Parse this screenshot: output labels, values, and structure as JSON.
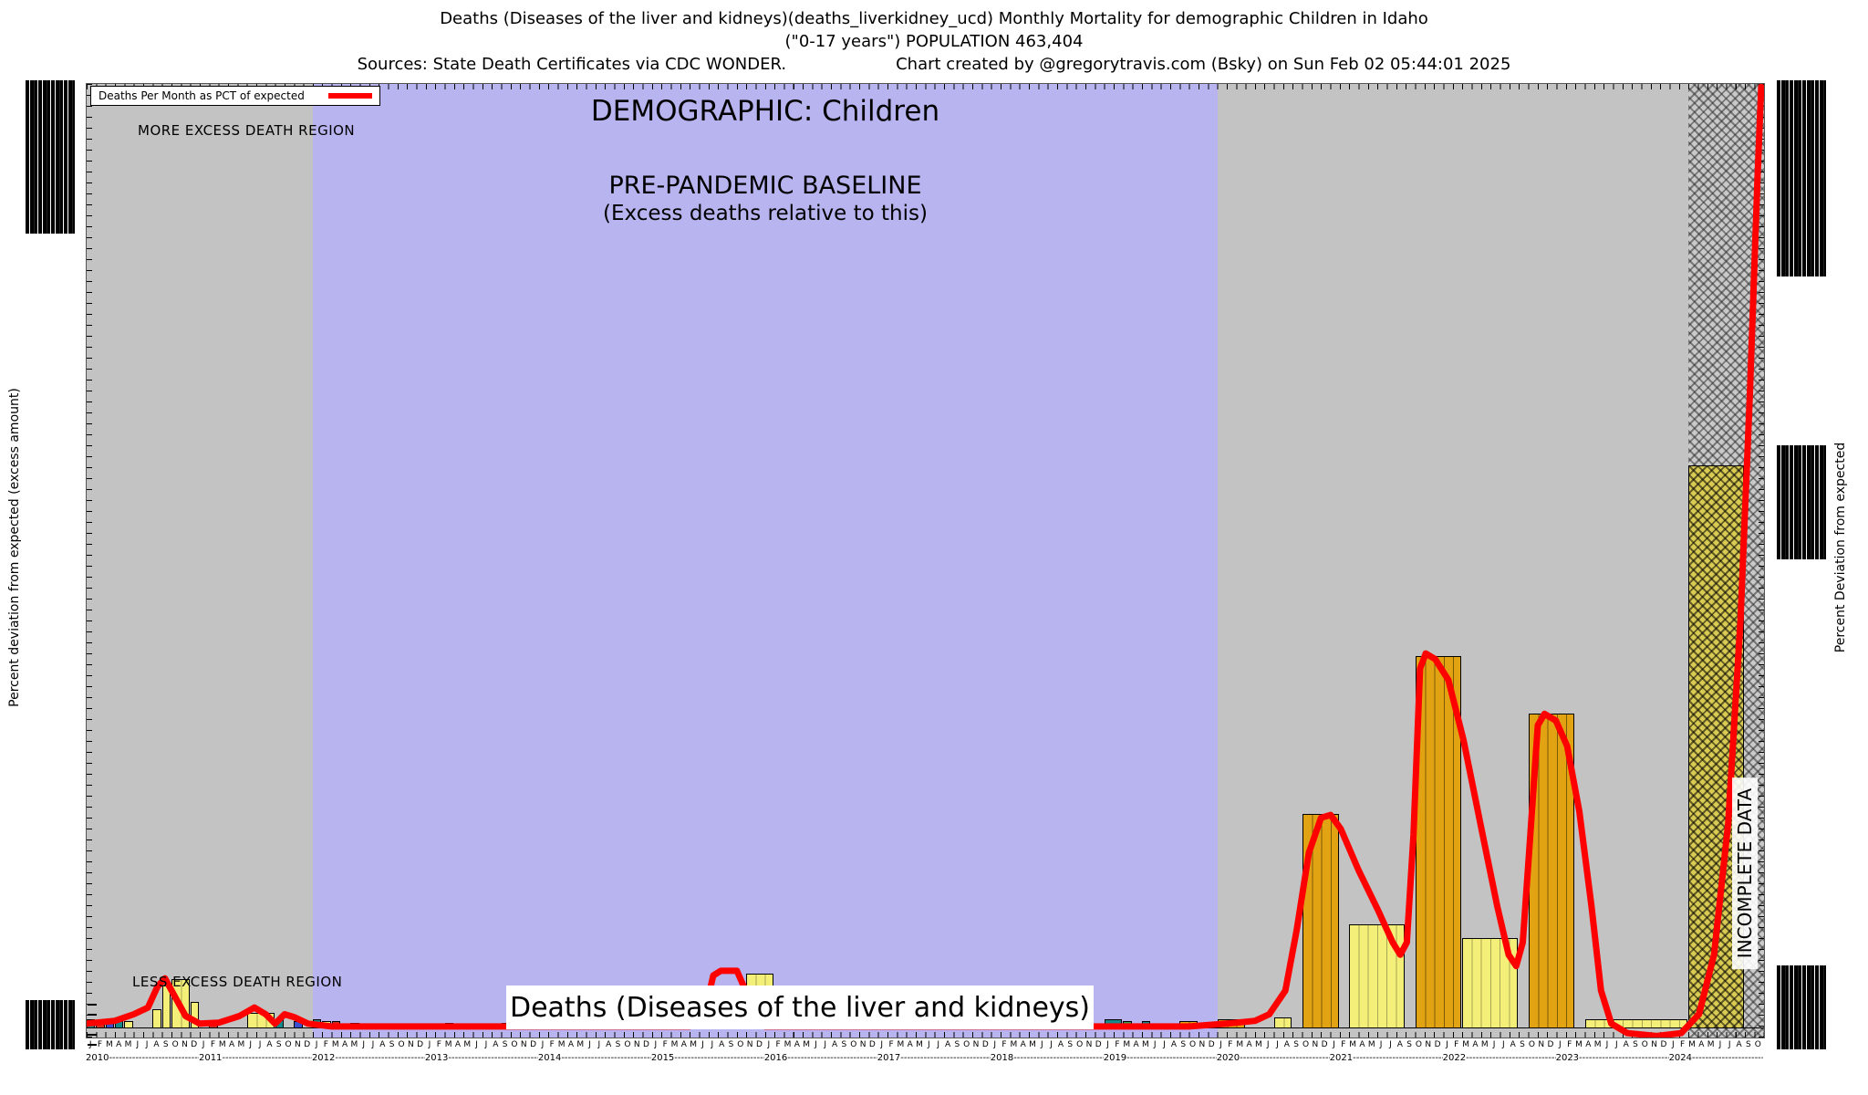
{
  "header": {
    "line1": "Deaths (Diseases of the liver and kidneys)(deaths_liverkidney_ucd) Monthly Mortality for demographic Children in Idaho",
    "line2": "(\"0-17 years\") POPULATION 463,404",
    "sources": "Sources: State Death Certificates via CDC WONDER.",
    "credit": "Chart created by @gregorytravis.com (Bsky) on Sun Feb 02 05:44:01 2025"
  },
  "labels": {
    "legend": "Deaths Per Month as PCT of expected",
    "more_excess": "MORE EXCESS DEATH REGION",
    "less_excess": "LESS EXCESS DEATH REGION",
    "demographic": "DEMOGRAPHIC: Children",
    "baseline_line1": "PRE-PANDEMIC BASELINE",
    "baseline_line2": "(Excess deaths relative to this)",
    "incomplete": "INCOMPLETE DATA",
    "bottom_title": "Deaths (Diseases of the liver and kidneys)",
    "y_left": "Percent deviation from expected (excess amount)",
    "y_right": "Percent Deviation from expected"
  },
  "axis": {
    "years": [
      "2010",
      "2011",
      "2012",
      "2013",
      "2014",
      "2015",
      "2016",
      "2017",
      "2018",
      "2019",
      "2020",
      "2021",
      "2022",
      "2023",
      "2024"
    ],
    "months_pattern": "JFMAMJJASOND",
    "months_total": 178
  },
  "colors": {
    "line": "#ff0000",
    "bar_orange": "#e2a313",
    "bar_yellow": "#f3ef78",
    "bar_teal": "#13898a",
    "bar_red": "#d03020",
    "bar_blue": "#3a50cc",
    "bar_green": "#35a050",
    "region_gray": "#c3c3c3",
    "region_purple": "#b7b4f0"
  },
  "chart_data": {
    "type": "combo-bar-line",
    "title": "Deaths (Diseases of the liver and kidneys) — monthly mortality, Children (0-17 years), Idaho",
    "x_axis": "Months Jan 2010 through Oct 2024 (month index 0 = Jan 2010)",
    "y_axis": "Percent deviation from expected (excess amount); tick-label values illegible in source, heights given as fraction of plot height above baseline",
    "legend_position": "top-left",
    "grid": false,
    "regions": [
      {
        "name": "early",
        "from": 0,
        "to": 24,
        "color": "gray"
      },
      {
        "name": "pre-pandemic-baseline",
        "from": 24,
        "to": 120,
        "color": "purple"
      },
      {
        "name": "pandemic",
        "from": 120,
        "to": 170,
        "color": "gray"
      },
      {
        "name": "incomplete-data",
        "from": 170,
        "to": 178,
        "color": "hatch"
      }
    ],
    "bars": [
      {
        "from": 0,
        "to": 0,
        "h": 0.01,
        "color": "teal"
      },
      {
        "from": 1,
        "to": 1,
        "h": 0.008,
        "color": "red"
      },
      {
        "from": 2,
        "to": 2,
        "h": 0.01,
        "color": "blue"
      },
      {
        "from": 3,
        "to": 3,
        "h": 0.008,
        "color": "teal"
      },
      {
        "from": 4,
        "to": 4,
        "h": 0.008,
        "color": "yellow"
      },
      {
        "from": 7,
        "to": 7,
        "h": 0.02,
        "color": "yellow"
      },
      {
        "from": 8,
        "to": 8,
        "h": 0.045,
        "color": "yellow"
      },
      {
        "from": 9,
        "to": 10,
        "h": 0.052,
        "color": "yellow"
      },
      {
        "from": 11,
        "to": 11,
        "h": 0.028,
        "color": "yellow"
      },
      {
        "from": 13,
        "to": 13,
        "h": 0.008,
        "color": "red"
      },
      {
        "from": 17,
        "to": 19,
        "h": 0.016,
        "color": "yellow"
      },
      {
        "from": 20,
        "to": 20,
        "h": 0.01,
        "color": "teal"
      },
      {
        "from": 22,
        "to": 22,
        "h": 0.008,
        "color": "blue"
      },
      {
        "from": 24,
        "to": 24,
        "h": 0.01,
        "color": "teal"
      },
      {
        "from": 25,
        "to": 25,
        "h": 0.008,
        "color": "yellow"
      },
      {
        "from": 26,
        "to": 26,
        "h": 0.008,
        "color": "red"
      },
      {
        "from": 28,
        "to": 28,
        "h": 0.006,
        "color": "teal"
      },
      {
        "from": 38,
        "to": 38,
        "h": 0.006,
        "color": "teal"
      },
      {
        "from": 44,
        "to": 44,
        "h": 0.006,
        "color": "red"
      },
      {
        "from": 52,
        "to": 52,
        "h": 0.006,
        "color": "teal"
      },
      {
        "from": 58,
        "to": 58,
        "h": 0.006,
        "color": "yellow"
      },
      {
        "from": 70,
        "to": 72,
        "h": 0.058,
        "color": "yellow"
      },
      {
        "from": 76,
        "to": 76,
        "h": 0.006,
        "color": "teal"
      },
      {
        "from": 84,
        "to": 84,
        "h": 0.006,
        "color": "red"
      },
      {
        "from": 97,
        "to": 97,
        "h": 0.006,
        "color": "teal"
      },
      {
        "from": 104,
        "to": 104,
        "h": 0.006,
        "color": "yellow"
      },
      {
        "from": 108,
        "to": 109,
        "h": 0.01,
        "color": "teal"
      },
      {
        "from": 110,
        "to": 110,
        "h": 0.008,
        "color": "green"
      },
      {
        "from": 112,
        "to": 112,
        "h": 0.008,
        "color": "teal"
      },
      {
        "from": 116,
        "to": 117,
        "h": 0.008,
        "color": "orange"
      },
      {
        "from": 120,
        "to": 122,
        "h": 0.01,
        "color": "orange"
      },
      {
        "from": 126,
        "to": 127,
        "h": 0.012,
        "color": "yellow"
      },
      {
        "from": 129,
        "to": 132,
        "h": 0.227,
        "color": "orange"
      },
      {
        "from": 134,
        "to": 139,
        "h": 0.11,
        "color": "yellow"
      },
      {
        "from": 141,
        "to": 145,
        "h": 0.394,
        "color": "orange"
      },
      {
        "from": 146,
        "to": 151,
        "h": 0.096,
        "color": "yellow"
      },
      {
        "from": 153,
        "to": 157,
        "h": 0.333,
        "color": "orange"
      },
      {
        "from": 159,
        "to": 169,
        "h": 0.01,
        "color": "yellow"
      },
      {
        "from": 170,
        "to": 175,
        "h": 0.596,
        "color": "hatched"
      }
    ],
    "line": {
      "name": "Deaths Per Month as PCT of expected",
      "color": "#ff0000",
      "points": [
        [
          0,
          0.005
        ],
        [
          3,
          0.008
        ],
        [
          5,
          0.015
        ],
        [
          6.5,
          0.022
        ],
        [
          7.5,
          0.044
        ],
        [
          8.3,
          0.053
        ],
        [
          9.4,
          0.033
        ],
        [
          10.5,
          0.013
        ],
        [
          12,
          0.005
        ],
        [
          14,
          0.006
        ],
        [
          16.2,
          0.013
        ],
        [
          17.8,
          0.022
        ],
        [
          19,
          0.015
        ],
        [
          20,
          0.005
        ],
        [
          21,
          0.015
        ],
        [
          22,
          0.012
        ],
        [
          23.5,
          0.005
        ],
        [
          26,
          0.002
        ],
        [
          64,
          0.002
        ],
        [
          65.7,
          0.022
        ],
        [
          66.5,
          0.056
        ],
        [
          67.3,
          0.061
        ],
        [
          69,
          0.061
        ],
        [
          69.8,
          0.043
        ],
        [
          70.6,
          0.008
        ],
        [
          72,
          0.002
        ],
        [
          117,
          0.002
        ],
        [
          121,
          0.005
        ],
        [
          124,
          0.008
        ],
        [
          125.5,
          0.015
        ],
        [
          127.2,
          0.04
        ],
        [
          128.4,
          0.104
        ],
        [
          129.7,
          0.186
        ],
        [
          131,
          0.223
        ],
        [
          132,
          0.226
        ],
        [
          133.1,
          0.211
        ],
        [
          135,
          0.167
        ],
        [
          137,
          0.126
        ],
        [
          138.6,
          0.091
        ],
        [
          139.4,
          0.078
        ],
        [
          140.1,
          0.091
        ],
        [
          140.8,
          0.205
        ],
        [
          141.5,
          0.381
        ],
        [
          142.1,
          0.397
        ],
        [
          143.1,
          0.391
        ],
        [
          144.5,
          0.369
        ],
        [
          146.1,
          0.306
        ],
        [
          147.9,
          0.217
        ],
        [
          149.7,
          0.129
        ],
        [
          150.9,
          0.078
        ],
        [
          151.7,
          0.066
        ],
        [
          152.4,
          0.091
        ],
        [
          153.2,
          0.205
        ],
        [
          154,
          0.321
        ],
        [
          154.7,
          0.333
        ],
        [
          155.9,
          0.326
        ],
        [
          157.1,
          0.299
        ],
        [
          158.4,
          0.23
        ],
        [
          159.7,
          0.129
        ],
        [
          160.7,
          0.04
        ],
        [
          161.8,
          0.005
        ],
        [
          163.5,
          -0.005
        ],
        [
          166.6,
          -0.008
        ],
        [
          169.2,
          -0.005
        ],
        [
          171.1,
          0.015
        ],
        [
          172.7,
          0.078
        ],
        [
          174.2,
          0.217
        ],
        [
          175.5,
          0.432
        ],
        [
          176.5,
          0.672
        ],
        [
          177.3,
          0.899
        ],
        [
          177.7,
          0.997
        ]
      ]
    }
  }
}
